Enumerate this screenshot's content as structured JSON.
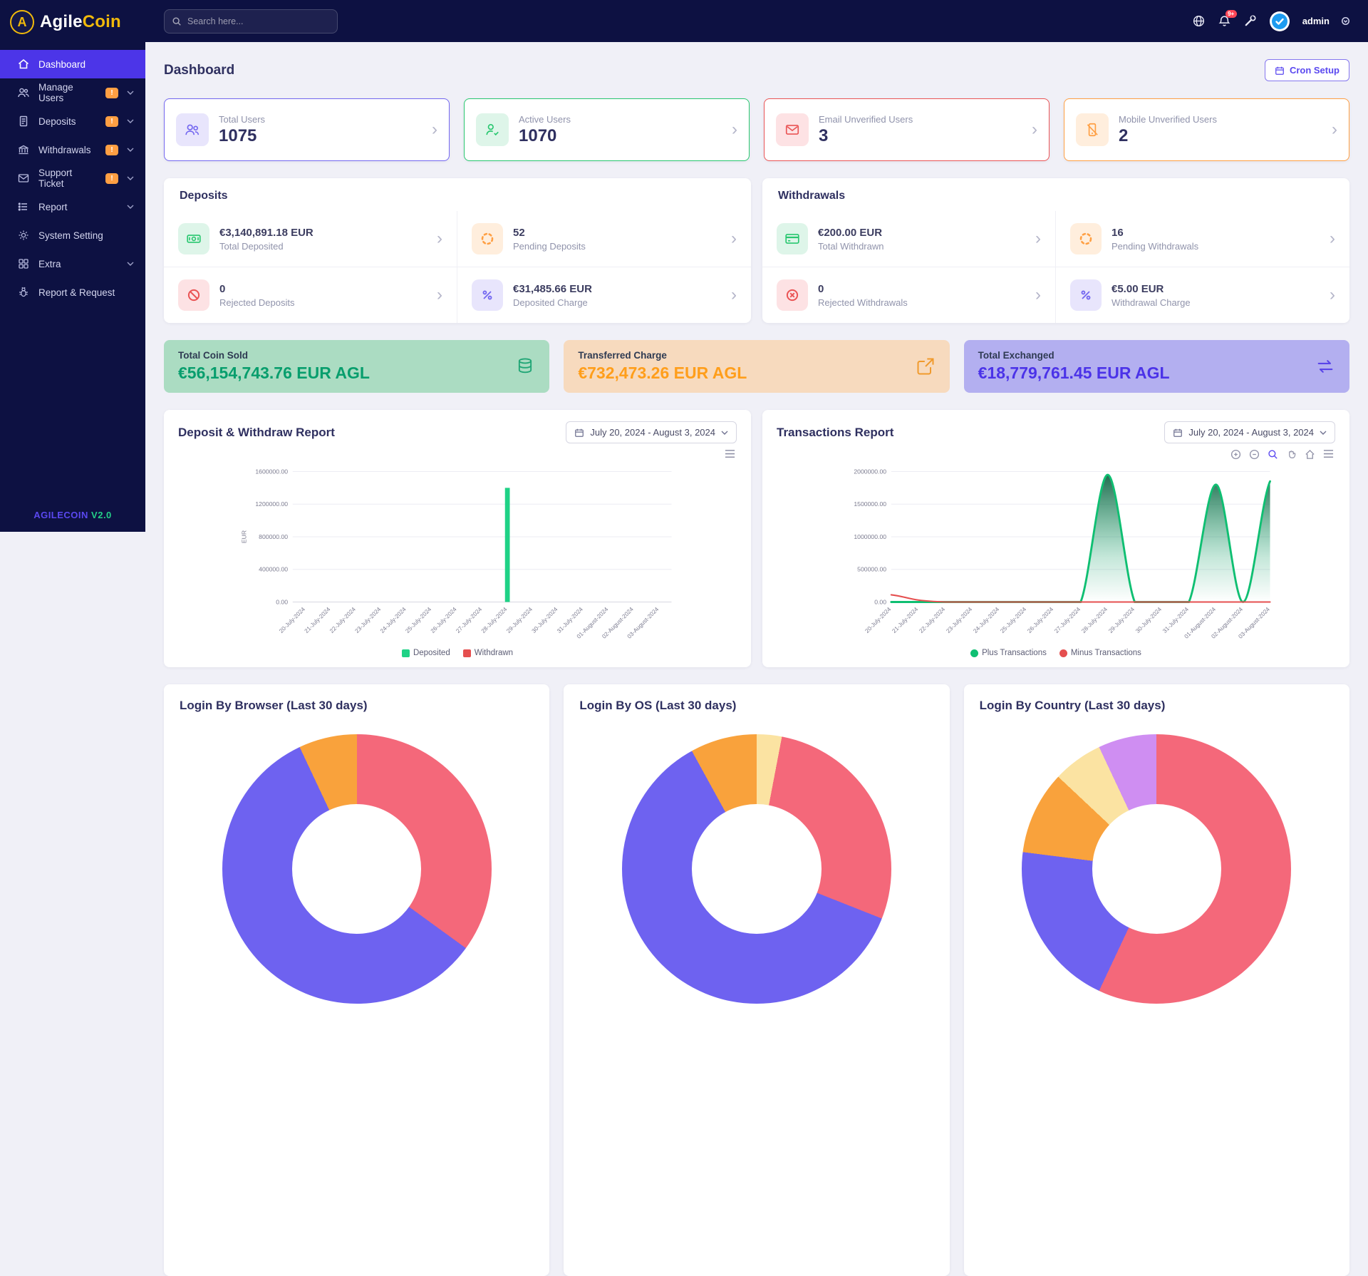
{
  "brand": {
    "logo_part1": "Agile",
    "logo_part2": "Coin",
    "logo_letter": "A",
    "version_name": "AGILECOIN",
    "version_number": "V2.0"
  },
  "topbar": {
    "search_placeholder": "Search here...",
    "notification_badge": "9+",
    "username": "admin"
  },
  "sidebar": {
    "items": [
      {
        "label": "Dashboard"
      },
      {
        "label": "Manage Users",
        "badge": "!"
      },
      {
        "label": "Deposits",
        "badge": "!"
      },
      {
        "label": "Withdrawals",
        "badge": "!"
      },
      {
        "label": "Support Ticket",
        "badge": "!"
      },
      {
        "label": "Report"
      },
      {
        "label": "System Setting"
      },
      {
        "label": "Extra"
      },
      {
        "label": "Report & Request"
      }
    ]
  },
  "page": {
    "title": "Dashboard",
    "cron_button_label": "Cron Setup"
  },
  "stats": [
    {
      "label": "Total Users",
      "value": "1075",
      "accent": "#7367f0"
    },
    {
      "label": "Active Users",
      "value": "1070",
      "accent": "#28c76f"
    },
    {
      "label": "Email Unverified Users",
      "value": "3",
      "accent": "#ea5455"
    },
    {
      "label": "Mobile Unverified Users",
      "value": "2",
      "accent": "#ff9f43"
    }
  ],
  "deposits": {
    "title": "Deposits",
    "items": [
      {
        "value": "€3,140,891.18 EUR",
        "label": "Total Deposited"
      },
      {
        "value": "52",
        "label": "Pending Deposits"
      },
      {
        "value": "0",
        "label": "Rejected Deposits"
      },
      {
        "value": "€31,485.66 EUR",
        "label": "Deposited Charge"
      }
    ]
  },
  "withdrawals": {
    "title": "Withdrawals",
    "items": [
      {
        "value": "€200.00 EUR",
        "label": "Total Withdrawn"
      },
      {
        "value": "16",
        "label": "Pending Withdrawals"
      },
      {
        "value": "0",
        "label": "Rejected Withdrawals"
      },
      {
        "value": "€5.00 EUR",
        "label": "Withdrawal Charge"
      }
    ]
  },
  "banners": [
    {
      "title": "Total Coin Sold",
      "value": "€56,154,743.76 EUR AGL",
      "bg": "#abdcc2",
      "fg": "#089e6d"
    },
    {
      "title": "Transferred Charge",
      "value": "€732,473.26 EUR AGL",
      "bg": "#f7dabe",
      "fg": "#ff9e1b"
    },
    {
      "title": "Total Exchanged",
      "value": "€18,779,761.45 EUR AGL",
      "bg": "#b3aff0",
      "fg": "#4b33e8"
    }
  ],
  "glyphs": {
    "chevron_right": "›"
  },
  "chart_data": [
    {
      "id": "deposit_withdraw",
      "type": "bar",
      "title": "Deposit & Withdraw Report",
      "date_range": "July 20, 2024 - August 3, 2024",
      "ylabel": "EUR",
      "ylim": [
        0,
        1600000
      ],
      "yticks": [
        0,
        400000,
        800000,
        1200000,
        1600000
      ],
      "categories": [
        "20-July-2024",
        "21-July-2024",
        "22-July-2024",
        "23-July-2024",
        "24-July-2024",
        "25-July-2024",
        "26-July-2024",
        "27-July-2024",
        "28-July-2024",
        "29-July-2024",
        "30-July-2024",
        "31-July-2024",
        "01-August-2024",
        "02-August-2024",
        "03-August-2024"
      ],
      "series": [
        {
          "name": "Deposited",
          "color": "#1fd286",
          "values": [
            0,
            0,
            0,
            0,
            0,
            0,
            0,
            0,
            1400000,
            0,
            0,
            0,
            0,
            0,
            0
          ]
        },
        {
          "name": "Withdrawn",
          "color": "#e54f4f",
          "values": [
            0,
            0,
            0,
            0,
            0,
            0,
            0,
            0,
            0,
            0,
            0,
            0,
            0,
            0,
            0
          ]
        }
      ],
      "legend_position": "bottom",
      "grid": true
    },
    {
      "id": "transactions",
      "type": "line",
      "title": "Transactions Report",
      "date_range": "July 20, 2024 - August 3, 2024",
      "ylim": [
        0,
        2000000
      ],
      "yticks": [
        0,
        500000,
        1000000,
        1500000,
        2000000
      ],
      "categories": [
        "20-July-2024",
        "21-July-2024",
        "22-July-2024",
        "23-July-2024",
        "24-July-2024",
        "25-July-2024",
        "26-July-2024",
        "27-July-2024",
        "28-July-2024",
        "29-July-2024",
        "30-July-2024",
        "31-July-2024",
        "01-August-2024",
        "02-August-2024",
        "03-August-2024"
      ],
      "series": [
        {
          "name": "Plus Transactions",
          "color": "#0fbf72",
          "values": [
            0,
            0,
            0,
            0,
            0,
            0,
            0,
            0,
            1950000,
            0,
            0,
            0,
            1800000,
            0,
            1850000
          ]
        },
        {
          "name": "Minus Transactions",
          "color": "#e54f4f",
          "values": [
            110000,
            30000,
            0,
            0,
            0,
            0,
            0,
            0,
            0,
            0,
            0,
            0,
            0,
            0,
            0
          ]
        }
      ],
      "legend_position": "bottom",
      "grid": true
    },
    {
      "id": "login_browser",
      "type": "pie",
      "title": "Login By Browser (Last 30 days)",
      "segments": [
        {
          "color": "#f4687a",
          "value": 35
        },
        {
          "color": "#6e62f0",
          "value": 58
        },
        {
          "color": "#f9a23c",
          "value": 7
        }
      ]
    },
    {
      "id": "login_os",
      "type": "pie",
      "title": "Login By OS (Last 30 days)",
      "segments": [
        {
          "color": "#fbe3a2",
          "value": 3
        },
        {
          "color": "#f4687a",
          "value": 28
        },
        {
          "color": "#6e62f0",
          "value": 61
        },
        {
          "color": "#f9a23c",
          "value": 8
        }
      ]
    },
    {
      "id": "login_country",
      "type": "pie",
      "title": "Login By Country (Last 30 days)",
      "segments": [
        {
          "color": "#f4687a",
          "value": 57
        },
        {
          "color": "#6e62f0",
          "value": 20
        },
        {
          "color": "#f9a23c",
          "value": 10
        },
        {
          "color": "#fbe3a2",
          "value": 6
        },
        {
          "color": "#cf8ef2",
          "value": 7
        }
      ]
    }
  ]
}
